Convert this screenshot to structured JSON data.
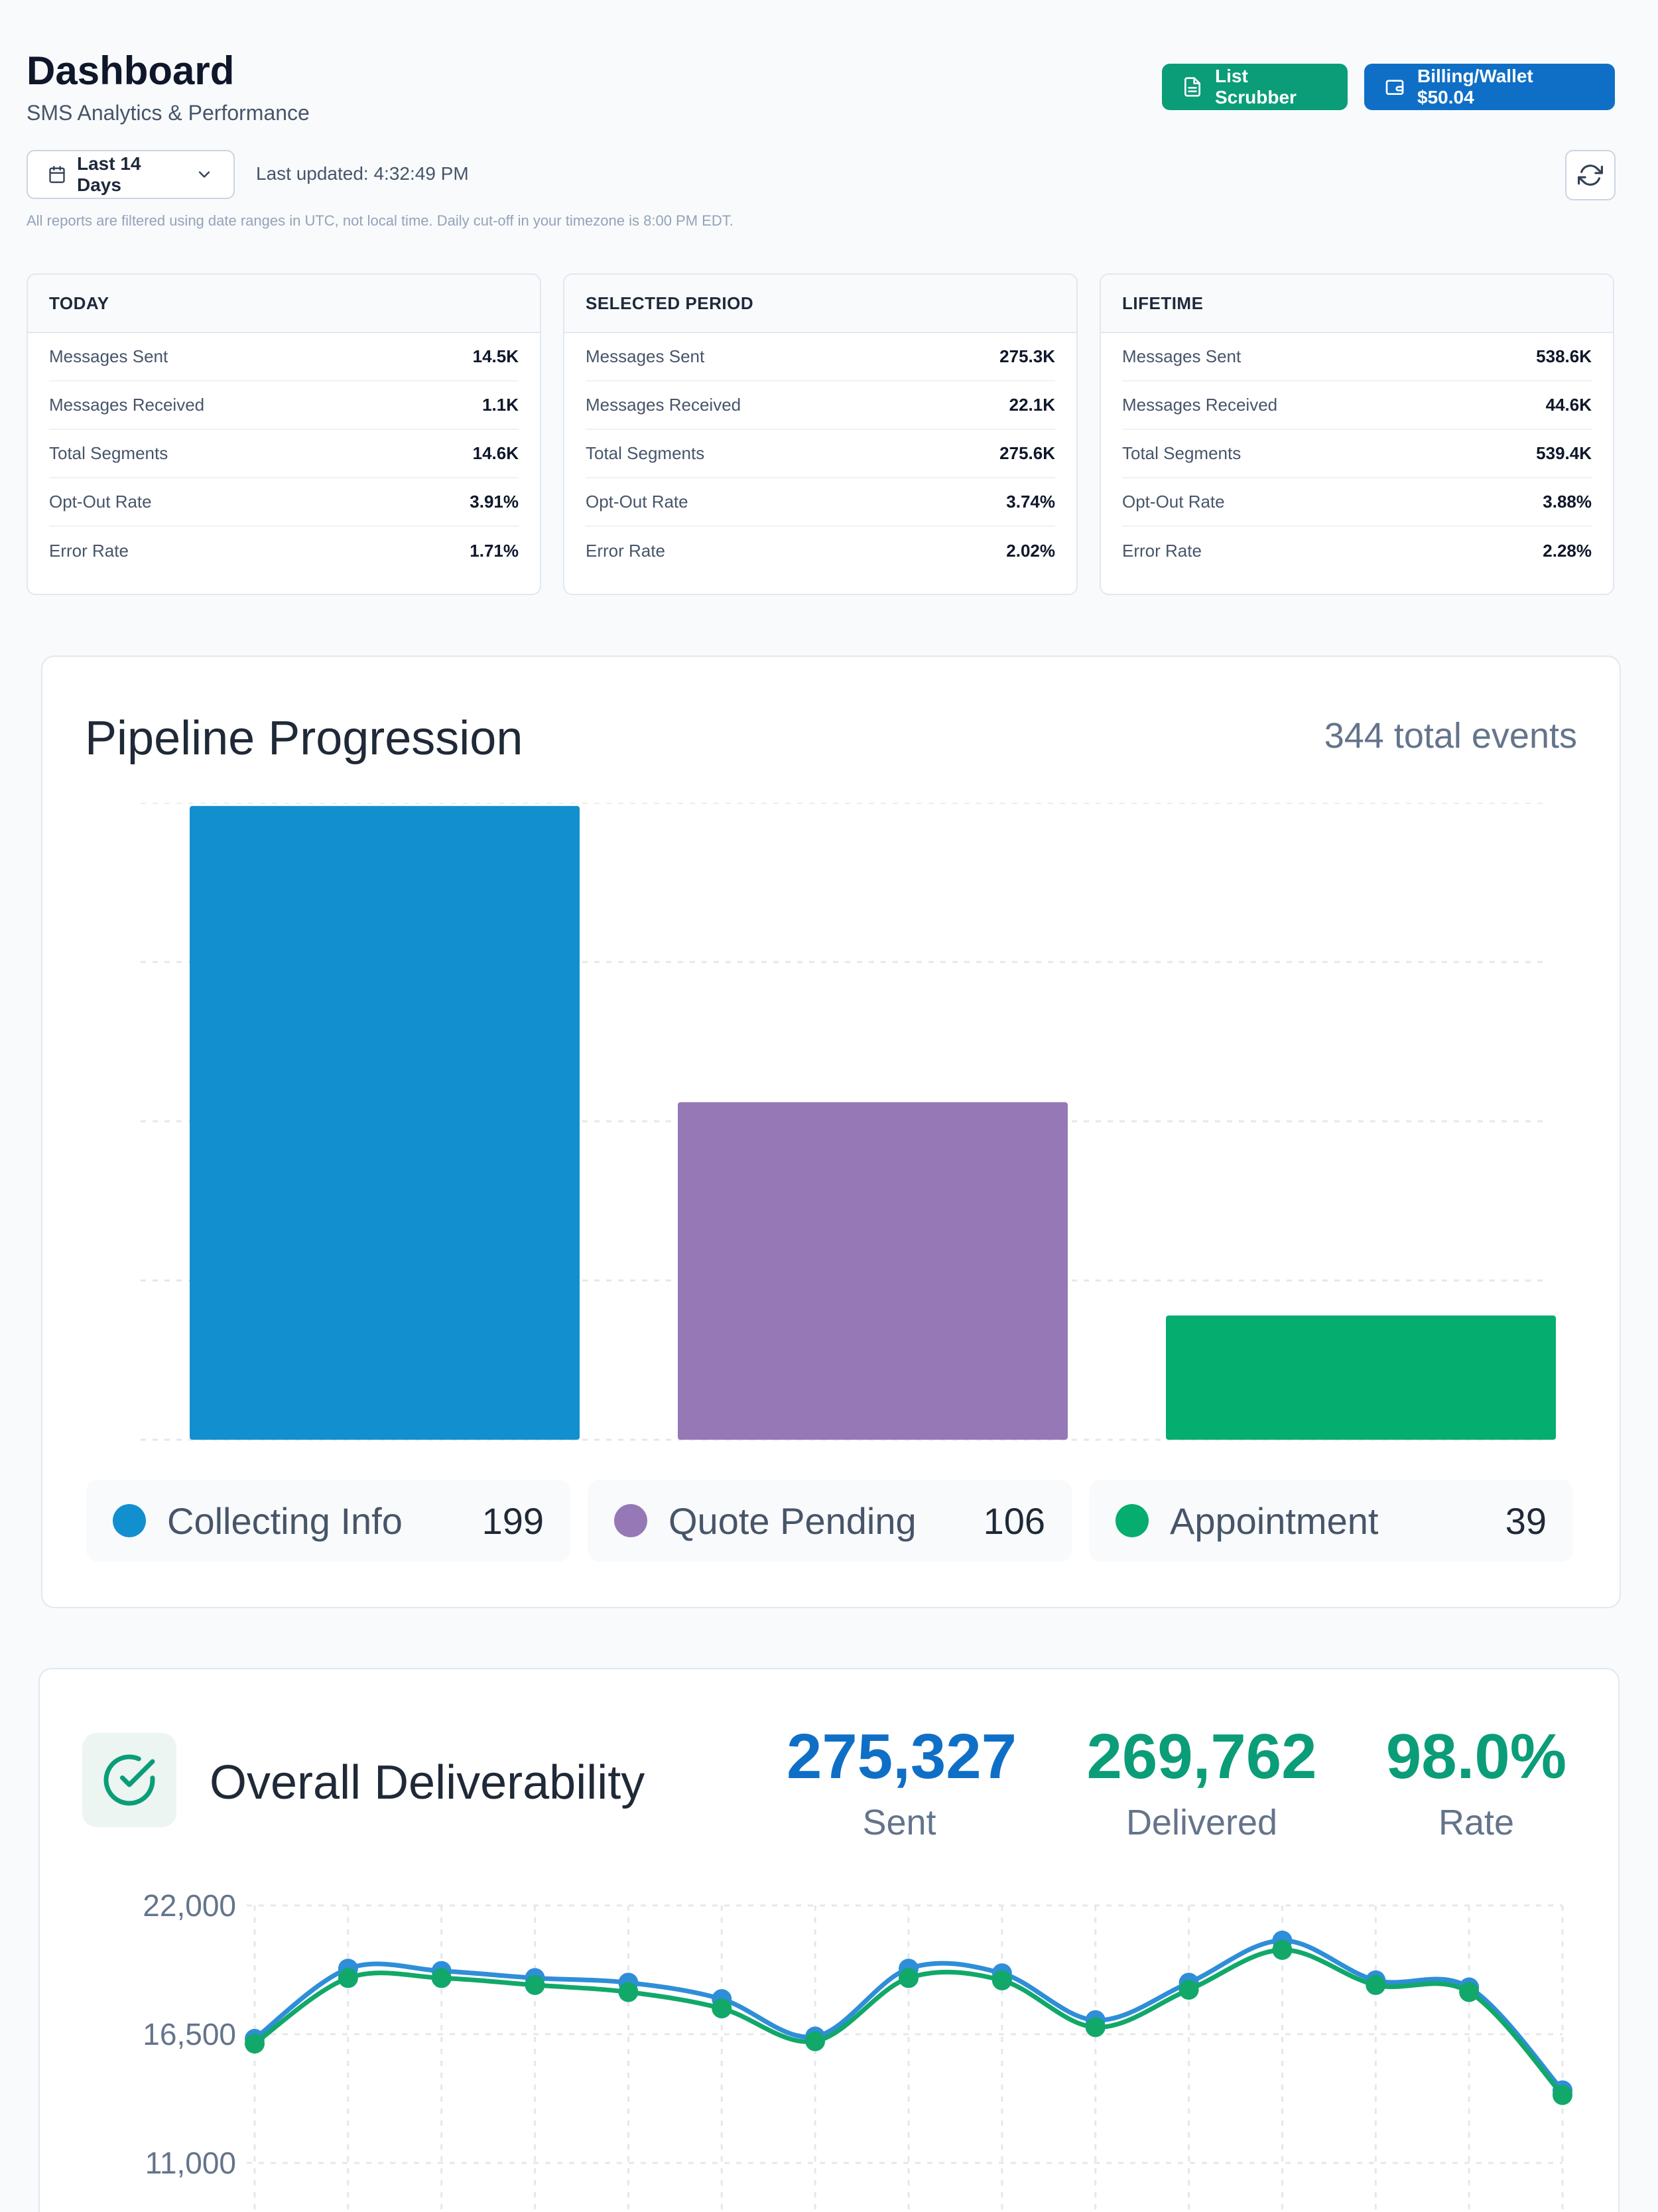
{
  "header": {
    "title": "Dashboard",
    "subtitle": "SMS Analytics & Performance",
    "list_scrubber_label": "List Scrubber",
    "billing_label": "Billing/Wallet $50.04",
    "date_range_label": "Last 14 Days",
    "last_updated": "Last updated: 4:32:49 PM",
    "notice": "All reports are filtered using date ranges in UTC, not local time. Daily cut-off in your timezone is 8:00 PM EDT."
  },
  "cards": [
    {
      "title": "TODAY",
      "rows": [
        {
          "label": "Messages Sent",
          "value": "14.5K"
        },
        {
          "label": "Messages Received",
          "value": "1.1K"
        },
        {
          "label": "Total Segments",
          "value": "14.6K"
        },
        {
          "label": "Opt-Out Rate",
          "value": "3.91%"
        },
        {
          "label": "Error Rate",
          "value": "1.71%"
        }
      ]
    },
    {
      "title": "SELECTED PERIOD",
      "rows": [
        {
          "label": "Messages Sent",
          "value": "275.3K"
        },
        {
          "label": "Messages Received",
          "value": "22.1K"
        },
        {
          "label": "Total Segments",
          "value": "275.6K"
        },
        {
          "label": "Opt-Out Rate",
          "value": "3.74%"
        },
        {
          "label": "Error Rate",
          "value": "2.02%"
        }
      ]
    },
    {
      "title": "LIFETIME",
      "rows": [
        {
          "label": "Messages Sent",
          "value": "538.6K"
        },
        {
          "label": "Messages Received",
          "value": "44.6K"
        },
        {
          "label": "Total Segments",
          "value": "539.4K"
        },
        {
          "label": "Opt-Out Rate",
          "value": "3.88%"
        },
        {
          "label": "Error Rate",
          "value": "2.28%"
        }
      ]
    }
  ],
  "pipeline": {
    "title": "Pipeline Progression",
    "total": "344 total events",
    "legend": [
      {
        "label": "Collecting Info",
        "count": "199"
      },
      {
        "label": "Quote Pending",
        "count": "106"
      },
      {
        "label": "Appointment",
        "count": "39"
      }
    ]
  },
  "deliverability": {
    "title": "Overall Deliverability",
    "sent_value": "275,327",
    "sent_label": "Sent",
    "delivered_value": "269,762",
    "delivered_label": "Delivered",
    "rate_value": "98.0%",
    "rate_label": "Rate"
  },
  "colors": {
    "collecting": "#128fce",
    "quote": "#9678b6",
    "appointment": "#05ad6e",
    "sent_line": "#2f8ed8",
    "delivered_line": "#11a86a",
    "primary": "#0f6fc6",
    "success": "#0a9d78"
  },
  "chart_data": [
    {
      "type": "bar",
      "title": "Pipeline Progression",
      "categories": [
        "Collecting Info",
        "Quote Pending",
        "Appointment"
      ],
      "values": [
        199,
        106,
        39
      ],
      "ylim": [
        0,
        200
      ],
      "grid": true
    },
    {
      "type": "line",
      "title": "Overall Deliverability",
      "yticks": [
        "22,000",
        "16,500",
        "11,000"
      ],
      "ylim": [
        11000,
        22000
      ],
      "x": [
        1,
        2,
        3,
        4,
        5,
        6,
        7,
        8,
        9,
        10,
        11,
        12,
        13,
        14,
        15
      ],
      "series": [
        {
          "values": [
            16300,
            19300,
            19200,
            18900,
            18700,
            18000,
            16400,
            19300,
            19100,
            17100,
            18700,
            20500,
            18800,
            18500,
            14100
          ]
        },
        {
          "values": [
            16100,
            18900,
            18900,
            18600,
            18300,
            17600,
            16200,
            18900,
            18800,
            16800,
            18400,
            20100,
            18600,
            18300,
            13900
          ]
        }
      ],
      "grid": true
    }
  ]
}
